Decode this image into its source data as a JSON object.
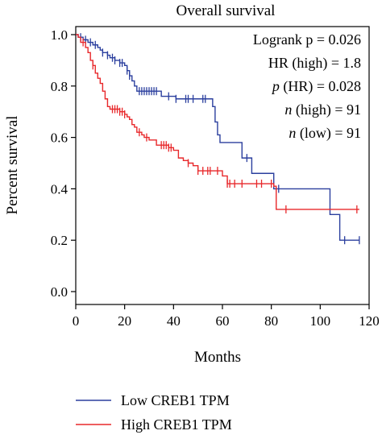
{
  "chart_data": {
    "type": "line",
    "title": "Overall survival",
    "xlabel": "Months",
    "ylabel": "Percent survival",
    "xlim": [
      0,
      120
    ],
    "ylim": [
      0,
      1.0
    ],
    "xticks": [
      "0",
      "20",
      "40",
      "60",
      "80",
      "100",
      "120"
    ],
    "yticks": [
      "0.0",
      "0.2",
      "0.4",
      "0.6",
      "0.8",
      "1.0"
    ],
    "grid": false,
    "legend_position": "bottom",
    "annotations": [
      {
        "pre": "",
        "italic": "",
        "post": "Logrank p = 0.026"
      },
      {
        "pre": "",
        "italic": "",
        "post": "HR (high) = 1.8"
      },
      {
        "pre": "",
        "italic": "p",
        "post": " (HR) = 0.028"
      },
      {
        "pre": "",
        "italic": "n",
        "post": " (high) = 91"
      },
      {
        "pre": "",
        "italic": "n",
        "post": " (low) = 91"
      }
    ],
    "series": [
      {
        "name": "Low CREB1 TPM",
        "color": "#2b3f9e",
        "steps": [
          [
            0,
            1.0
          ],
          [
            1,
            0.99
          ],
          [
            3,
            0.98
          ],
          [
            5,
            0.97
          ],
          [
            7,
            0.96
          ],
          [
            9,
            0.95
          ],
          [
            10,
            0.94
          ],
          [
            11,
            0.93
          ],
          [
            13,
            0.92
          ],
          [
            14,
            0.91
          ],
          [
            16,
            0.9
          ],
          [
            18,
            0.89
          ],
          [
            20,
            0.88
          ],
          [
            21,
            0.86
          ],
          [
            22,
            0.84
          ],
          [
            23,
            0.82
          ],
          [
            24,
            0.8
          ],
          [
            25,
            0.78
          ],
          [
            35,
            0.76
          ],
          [
            41,
            0.75
          ],
          [
            56,
            0.72
          ],
          [
            57,
            0.66
          ],
          [
            58,
            0.61
          ],
          [
            59,
            0.58
          ],
          [
            68,
            0.52
          ],
          [
            72,
            0.46
          ],
          [
            81,
            0.4
          ],
          [
            104,
            0.3
          ],
          [
            108,
            0.2
          ],
          [
            116,
            0.2
          ]
        ],
        "censor_x": [
          2,
          4,
          6,
          8,
          11,
          13,
          15,
          16,
          18,
          19,
          21,
          22,
          26,
          27,
          28,
          29,
          30,
          31,
          32,
          33,
          38,
          41,
          45,
          46,
          48,
          52,
          53,
          70,
          83,
          110,
          116
        ]
      },
      {
        "name": "High CREB1 TPM",
        "color": "#e8282b",
        "steps": [
          [
            0,
            1.0
          ],
          [
            1,
            0.99
          ],
          [
            2,
            0.97
          ],
          [
            4,
            0.95
          ],
          [
            5,
            0.93
          ],
          [
            6,
            0.9
          ],
          [
            7,
            0.88
          ],
          [
            8,
            0.85
          ],
          [
            9,
            0.83
          ],
          [
            10,
            0.81
          ],
          [
            11,
            0.78
          ],
          [
            12,
            0.75
          ],
          [
            13,
            0.72
          ],
          [
            14,
            0.71
          ],
          [
            18,
            0.7
          ],
          [
            20,
            0.69
          ],
          [
            21,
            0.68
          ],
          [
            22,
            0.67
          ],
          [
            23,
            0.65
          ],
          [
            24,
            0.64
          ],
          [
            25,
            0.62
          ],
          [
            27,
            0.61
          ],
          [
            28,
            0.6
          ],
          [
            30,
            0.59
          ],
          [
            33,
            0.57
          ],
          [
            38,
            0.56
          ],
          [
            40,
            0.55
          ],
          [
            42,
            0.52
          ],
          [
            44,
            0.51
          ],
          [
            46,
            0.5
          ],
          [
            48,
            0.49
          ],
          [
            50,
            0.47
          ],
          [
            60,
            0.45
          ],
          [
            62,
            0.42
          ],
          [
            81,
            0.41
          ],
          [
            82,
            0.32
          ],
          [
            116,
            0.32
          ]
        ],
        "censor_x": [
          3,
          7,
          15,
          16,
          17,
          18,
          19,
          20,
          26,
          29,
          35,
          36,
          37,
          38,
          39,
          46,
          50,
          52,
          54,
          55,
          58,
          62,
          63,
          65,
          68,
          74,
          76,
          80,
          86,
          115
        ]
      }
    ]
  }
}
